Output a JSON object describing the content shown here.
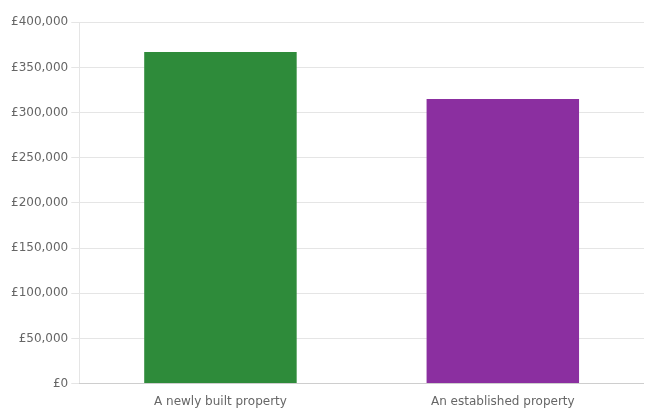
{
  "chart_data": {
    "type": "bar",
    "categories": [
      "A newly built property",
      "An established property"
    ],
    "values": [
      367000,
      315000
    ],
    "colors": [
      "#2e8b3a",
      "#8b2fa0"
    ],
    "ylim": [
      0,
      400000
    ],
    "yticks": [
      {
        "value": 0,
        "label": "£0"
      },
      {
        "value": 50000,
        "label": "£50,000"
      },
      {
        "value": 100000,
        "label": "£100,000"
      },
      {
        "value": 150000,
        "label": "£150,000"
      },
      {
        "value": 200000,
        "label": "£200,000"
      },
      {
        "value": 250000,
        "label": "£250,000"
      },
      {
        "value": 300000,
        "label": "£300,000"
      },
      {
        "value": 350000,
        "label": "£350,000"
      },
      {
        "value": 400000,
        "label": "£400,000"
      }
    ],
    "grid": true
  }
}
